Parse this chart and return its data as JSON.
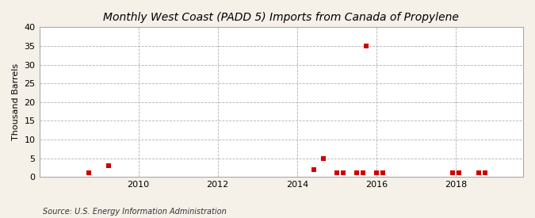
{
  "title": "Monthly West Coast (PADD 5) Imports from Canada of Propylene",
  "ylabel": "Thousand Barrels",
  "source_text": "Source: U.S. Energy Information Administration",
  "background_color": "#f5f0e8",
  "plot_background_color": "#ffffff",
  "marker_color": "#cc0000",
  "marker": "s",
  "marker_size": 16,
  "xlim_start": 2007.5,
  "xlim_end": 2019.7,
  "ylim": [
    0,
    40
  ],
  "yticks": [
    0,
    5,
    10,
    15,
    20,
    25,
    30,
    35,
    40
  ],
  "xticks": [
    2010,
    2012,
    2014,
    2016,
    2018
  ],
  "data_points": [
    [
      2008.75,
      1
    ],
    [
      2009.25,
      3
    ],
    [
      2014.42,
      2
    ],
    [
      2014.67,
      5
    ],
    [
      2015.0,
      1
    ],
    [
      2015.17,
      1
    ],
    [
      2015.5,
      1
    ],
    [
      2015.67,
      1
    ],
    [
      2015.75,
      35
    ],
    [
      2016.0,
      1
    ],
    [
      2016.17,
      1
    ],
    [
      2017.92,
      1
    ],
    [
      2018.08,
      1
    ],
    [
      2018.58,
      1
    ],
    [
      2018.75,
      1
    ]
  ]
}
